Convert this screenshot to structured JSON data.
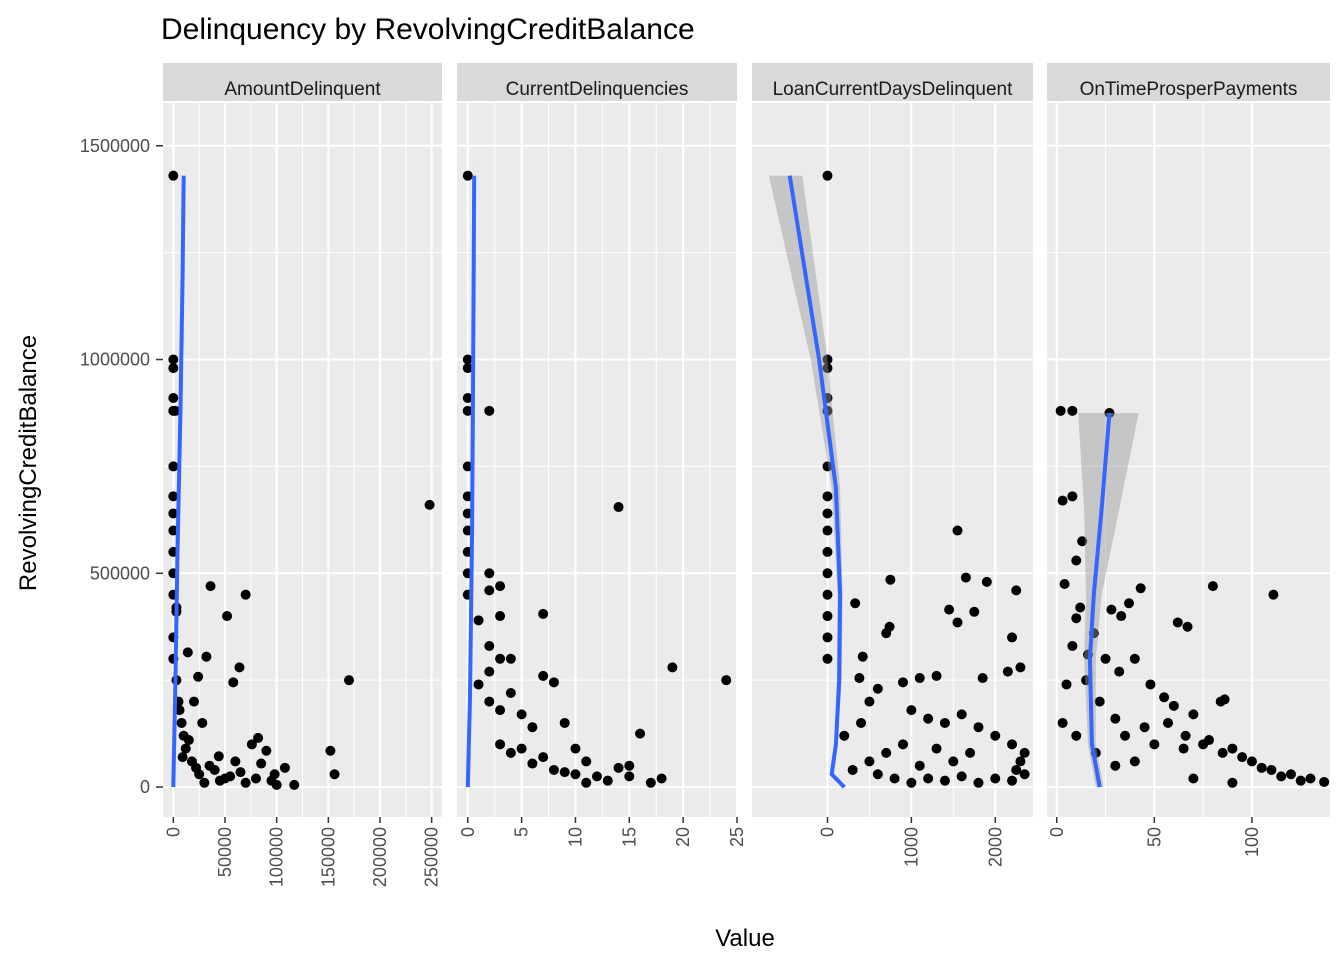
{
  "chart_data": {
    "type": "scatter",
    "title": "Delinquency by RevolvingCreditBalance",
    "xlabel": "Value",
    "ylabel": "RevolvingCreditBalance",
    "ylim": [
      -70000,
      1600000
    ],
    "yticks": [
      0,
      500000,
      1000000,
      1500000
    ],
    "ytick_labels": [
      "0",
      "500000",
      "1000000",
      "1500000"
    ],
    "grid": true,
    "legend": "none",
    "colors": {
      "panel_bg": "#ebebeb",
      "strip_bg": "#d9d9d9",
      "grid": "#ffffff",
      "point": "#000000",
      "smooth_line": "#3366ff",
      "ribbon": "#999999"
    },
    "facets": [
      {
        "strip": "AmountDelinquent",
        "xlim": [
          -10000,
          260000
        ],
        "xticks": [
          0,
          50000,
          100000,
          150000,
          200000,
          250000
        ],
        "xtick_labels": [
          "0",
          "50000",
          "100000",
          "150000",
          "200000",
          "250000"
        ],
        "points": [
          [
            0,
            1430000
          ],
          [
            0,
            1000000
          ],
          [
            0,
            980000
          ],
          [
            0,
            910000
          ],
          [
            0,
            880000
          ],
          [
            2000,
            880000
          ],
          [
            0,
            750000
          ],
          [
            0,
            680000
          ],
          [
            0,
            640000
          ],
          [
            0,
            600000
          ],
          [
            0,
            550000
          ],
          [
            0,
            500000
          ],
          [
            0,
            450000
          ],
          [
            3000,
            420000
          ],
          [
            3000,
            410000
          ],
          [
            0,
            350000
          ],
          [
            0,
            300000
          ],
          [
            36000,
            470000
          ],
          [
            70000,
            450000
          ],
          [
            52000,
            400000
          ],
          [
            14000,
            315000
          ],
          [
            32000,
            305000
          ],
          [
            64000,
            280000
          ],
          [
            58000,
            245000
          ],
          [
            24000,
            258000
          ],
          [
            170000,
            250000
          ],
          [
            248000,
            660000
          ],
          [
            152000,
            85000
          ],
          [
            156000,
            30000
          ],
          [
            117000,
            5000
          ],
          [
            82000,
            115000
          ],
          [
            76000,
            100000
          ],
          [
            90000,
            85000
          ],
          [
            108000,
            45000
          ],
          [
            98000,
            30000
          ],
          [
            60000,
            60000
          ],
          [
            44000,
            72000
          ],
          [
            28000,
            150000
          ],
          [
            20000,
            200000
          ],
          [
            10000,
            120000
          ],
          [
            40000,
            40000
          ],
          [
            50000,
            20000
          ],
          [
            5000,
            200000
          ],
          [
            8000,
            150000
          ],
          [
            12000,
            90000
          ],
          [
            18000,
            60000
          ],
          [
            25000,
            30000
          ],
          [
            30000,
            10000
          ],
          [
            35000,
            50000
          ],
          [
            45000,
            15000
          ],
          [
            55000,
            25000
          ],
          [
            65000,
            35000
          ],
          [
            70000,
            10000
          ],
          [
            80000,
            20000
          ],
          [
            85000,
            55000
          ],
          [
            95000,
            15000
          ],
          [
            100000,
            5000
          ],
          [
            3000,
            250000
          ],
          [
            6000,
            180000
          ],
          [
            9000,
            70000
          ],
          [
            15000,
            110000
          ],
          [
            22000,
            45000
          ]
        ],
        "smooth": [
          [
            0,
            0
          ],
          [
            2000,
            250000
          ],
          [
            4000,
            550000
          ],
          [
            7000,
            900000
          ],
          [
            9000,
            1200000
          ],
          [
            10000,
            1430000
          ]
        ],
        "ribbon": []
      },
      {
        "strip": "CurrentDelinquencies",
        "xlim": [
          -1,
          25
        ],
        "xticks": [
          0,
          5,
          10,
          15,
          20,
          25
        ],
        "xtick_labels": [
          "0",
          "5",
          "10",
          "15",
          "20",
          "25"
        ],
        "points": [
          [
            0,
            1430000
          ],
          [
            0,
            1000000
          ],
          [
            0,
            980000
          ],
          [
            0,
            910000
          ],
          [
            0,
            880000
          ],
          [
            2,
            880000
          ],
          [
            0,
            750000
          ],
          [
            0,
            680000
          ],
          [
            0,
            640000
          ],
          [
            0,
            600000
          ],
          [
            0,
            550000
          ],
          [
            0,
            500000
          ],
          [
            0,
            450000
          ],
          [
            1,
            390000
          ],
          [
            2,
            500000
          ],
          [
            3,
            470000
          ],
          [
            2,
            460000
          ],
          [
            3,
            400000
          ],
          [
            2,
            330000
          ],
          [
            3,
            300000
          ],
          [
            4,
            300000
          ],
          [
            2,
            270000
          ],
          [
            7,
            405000
          ],
          [
            14,
            655000
          ],
          [
            7,
            260000
          ],
          [
            8,
            245000
          ],
          [
            19,
            280000
          ],
          [
            24,
            250000
          ],
          [
            16,
            125000
          ],
          [
            9,
            150000
          ],
          [
            6,
            140000
          ],
          [
            5,
            170000
          ],
          [
            4,
            220000
          ],
          [
            3,
            180000
          ],
          [
            10,
            90000
          ],
          [
            11,
            60000
          ],
          [
            14,
            45000
          ],
          [
            15,
            50000
          ],
          [
            15,
            25000
          ],
          [
            17,
            10000
          ],
          [
            18,
            20000
          ],
          [
            13,
            15000
          ],
          [
            12,
            25000
          ],
          [
            10,
            30000
          ],
          [
            8,
            40000
          ],
          [
            6,
            55000
          ],
          [
            4,
            80000
          ],
          [
            3,
            100000
          ],
          [
            2,
            200000
          ],
          [
            1,
            240000
          ],
          [
            5,
            90000
          ],
          [
            7,
            70000
          ],
          [
            9,
            35000
          ],
          [
            11,
            10000
          ]
        ],
        "smooth": [
          [
            0,
            0
          ],
          [
            0.2,
            200000
          ],
          [
            0.4,
            600000
          ],
          [
            0.5,
            1000000
          ],
          [
            0.6,
            1430000
          ]
        ],
        "ribbon": [
          [
            0,
            0,
            0
          ],
          [
            0.2,
            150000,
            250000
          ],
          [
            0.4,
            550000,
            650000
          ],
          [
            0.5,
            900000,
            1100000
          ],
          [
            0.6,
            1350000,
            1500000
          ]
        ]
      },
      {
        "strip": "LoanCurrentDaysDelinquent",
        "xlim": [
          -900,
          2450
        ],
        "xticks": [
          0,
          1000,
          2000
        ],
        "xtick_labels": [
          "0",
          "1000",
          "2000"
        ],
        "points": [
          [
            0,
            1430000
          ],
          [
            0,
            1000000
          ],
          [
            0,
            980000
          ],
          [
            0,
            910000
          ],
          [
            0,
            880000
          ],
          [
            0,
            750000
          ],
          [
            0,
            680000
          ],
          [
            0,
            640000
          ],
          [
            0,
            600000
          ],
          [
            0,
            550000
          ],
          [
            0,
            500000
          ],
          [
            0,
            450000
          ],
          [
            0,
            400000
          ],
          [
            0,
            350000
          ],
          [
            0,
            300000
          ],
          [
            1550,
            600000
          ],
          [
            1650,
            490000
          ],
          [
            1900,
            480000
          ],
          [
            750,
            485000
          ],
          [
            2250,
            460000
          ],
          [
            1450,
            415000
          ],
          [
            1750,
            410000
          ],
          [
            1550,
            385000
          ],
          [
            2200,
            350000
          ],
          [
            330,
            430000
          ],
          [
            420,
            305000
          ],
          [
            380,
            255000
          ],
          [
            740,
            375000
          ],
          [
            700,
            360000
          ],
          [
            2300,
            280000
          ],
          [
            2150,
            270000
          ],
          [
            1850,
            255000
          ],
          [
            1300,
            260000
          ],
          [
            1100,
            255000
          ],
          [
            900,
            245000
          ],
          [
            600,
            230000
          ],
          [
            500,
            200000
          ],
          [
            1000,
            180000
          ],
          [
            1200,
            160000
          ],
          [
            1400,
            150000
          ],
          [
            1600,
            170000
          ],
          [
            1800,
            140000
          ],
          [
            2000,
            120000
          ],
          [
            2200,
            100000
          ],
          [
            2300,
            60000
          ],
          [
            2350,
            80000
          ],
          [
            2250,
            40000
          ],
          [
            1700,
            80000
          ],
          [
            1500,
            60000
          ],
          [
            1300,
            90000
          ],
          [
            1100,
            50000
          ],
          [
            900,
            100000
          ],
          [
            700,
            80000
          ],
          [
            500,
            60000
          ],
          [
            300,
            40000
          ],
          [
            200,
            120000
          ],
          [
            400,
            150000
          ],
          [
            600,
            30000
          ],
          [
            800,
            20000
          ],
          [
            1000,
            10000
          ],
          [
            1200,
            20000
          ],
          [
            1400,
            15000
          ],
          [
            1600,
            25000
          ],
          [
            1800,
            10000
          ],
          [
            2000,
            20000
          ],
          [
            2200,
            15000
          ],
          [
            2350,
            30000
          ]
        ],
        "smooth": [
          [
            -450,
            1430000
          ],
          [
            -100,
            1000000
          ],
          [
            100,
            700000
          ],
          [
            150,
            450000
          ],
          [
            140,
            250000
          ],
          [
            100,
            100000
          ],
          [
            50,
            30000
          ],
          [
            200,
            0
          ]
        ],
        "ribbon": [
          [
            -700,
            -300,
            1430000
          ],
          [
            -200,
            0,
            1000000
          ],
          [
            50,
            150,
            700000
          ],
          [
            120,
            180,
            450000
          ],
          [
            110,
            170,
            250000
          ],
          [
            80,
            120,
            100000
          ],
          [
            30,
            70,
            30000
          ],
          [
            180,
            220,
            0
          ]
        ]
      },
      {
        "strip": "OnTimeProsperPayments",
        "xlim": [
          -5,
          140
        ],
        "xticks": [
          0,
          50,
          100
        ],
        "xtick_labels": [
          "0",
          "50",
          "100"
        ],
        "points": [
          [
            2,
            880000
          ],
          [
            8,
            880000
          ],
          [
            27,
            875000
          ],
          [
            8,
            680000
          ],
          [
            3,
            670000
          ],
          [
            4,
            475000
          ],
          [
            10,
            530000
          ],
          [
            13,
            575000
          ],
          [
            43,
            465000
          ],
          [
            37,
            430000
          ],
          [
            33,
            400000
          ],
          [
            12,
            420000
          ],
          [
            28,
            415000
          ],
          [
            19,
            360000
          ],
          [
            10,
            395000
          ],
          [
            62,
            385000
          ],
          [
            67,
            375000
          ],
          [
            80,
            470000
          ],
          [
            111,
            450000
          ],
          [
            16,
            310000
          ],
          [
            25,
            300000
          ],
          [
            40,
            300000
          ],
          [
            32,
            270000
          ],
          [
            48,
            240000
          ],
          [
            55,
            210000
          ],
          [
            60,
            190000
          ],
          [
            84,
            200000
          ],
          [
            86,
            205000
          ],
          [
            70,
            170000
          ],
          [
            57,
            150000
          ],
          [
            45,
            140000
          ],
          [
            35,
            120000
          ],
          [
            30,
            160000
          ],
          [
            22,
            200000
          ],
          [
            15,
            250000
          ],
          [
            8,
            330000
          ],
          [
            5,
            240000
          ],
          [
            66,
            120000
          ],
          [
            75,
            100000
          ],
          [
            90,
            90000
          ],
          [
            100,
            60000
          ],
          [
            110,
            40000
          ],
          [
            120,
            30000
          ],
          [
            130,
            20000
          ],
          [
            137,
            12000
          ],
          [
            125,
            15000
          ],
          [
            115,
            25000
          ],
          [
            105,
            45000
          ],
          [
            95,
            70000
          ],
          [
            85,
            80000
          ],
          [
            78,
            110000
          ],
          [
            65,
            90000
          ],
          [
            50,
            100000
          ],
          [
            40,
            60000
          ],
          [
            30,
            50000
          ],
          [
            20,
            80000
          ],
          [
            10,
            120000
          ],
          [
            3,
            150000
          ],
          [
            70,
            20000
          ],
          [
            90,
            10000
          ]
        ],
        "smooth": [
          [
            22,
            0
          ],
          [
            18,
            100000
          ],
          [
            17,
            300000
          ],
          [
            19,
            450000
          ],
          [
            23,
            650000
          ],
          [
            27,
            875000
          ]
        ],
        "ribbon": [
          [
            20,
            24,
            0
          ],
          [
            16,
            20,
            100000
          ],
          [
            14,
            20,
            300000
          ],
          [
            15,
            23,
            450000
          ],
          [
            14,
            32,
            650000
          ],
          [
            11,
            42,
            875000
          ]
        ]
      }
    ]
  }
}
